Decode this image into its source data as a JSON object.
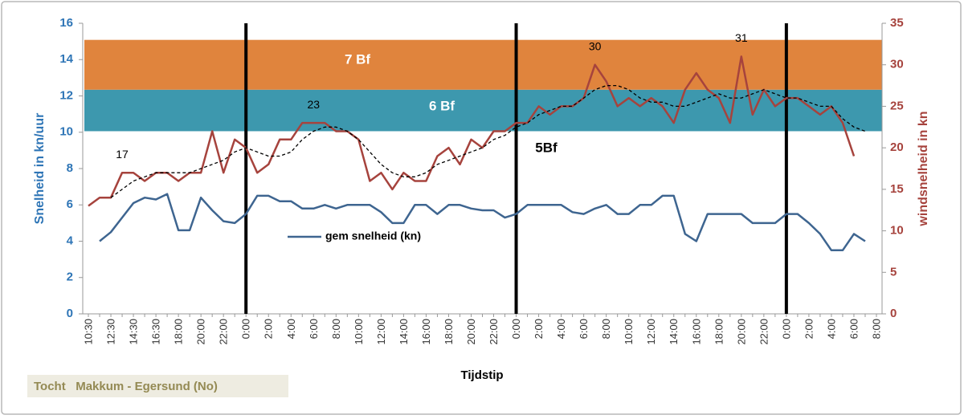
{
  "chart_data": {
    "type": "line",
    "xlabel": "Tijdstip",
    "ylabel": "Snelheid in kn/uur",
    "y2label": "windsnelheid in kn",
    "footnote": "Tocht   Makkum - Egersund (No)",
    "categories": [
      "10:30",
      null,
      "12:30",
      null,
      "14:30",
      null,
      "16:30",
      null,
      "18:00",
      null,
      "20:00",
      null,
      "22:00",
      null,
      "0:00",
      null,
      "2:00",
      null,
      "4:00",
      null,
      "6:00",
      null,
      "8:00",
      null,
      "10:00",
      null,
      "12:00",
      null,
      "14:00",
      null,
      "16:00",
      null,
      "18:00",
      null,
      "20:00",
      null,
      "22:00",
      null,
      "0:00",
      null,
      "2:00",
      null,
      "4:00",
      null,
      "6:00",
      null,
      "8:00",
      null,
      "10:00",
      null,
      "12:00",
      null,
      "14:00",
      null,
      "16:00",
      null,
      "18:00",
      null,
      "20:00",
      null,
      "22:00",
      null,
      "0:00",
      null,
      "2:00",
      null,
      "4:00",
      null,
      "6:00",
      null,
      "8:00"
    ],
    "ylim": [
      0,
      16
    ],
    "yticks": [
      0,
      2,
      4,
      6,
      8,
      10,
      12,
      14,
      16
    ],
    "y2lim": [
      0,
      35
    ],
    "y2ticks": [
      0,
      5,
      10,
      15,
      20,
      25,
      30,
      35
    ],
    "bands": [
      {
        "label": "5Bf",
        "from": 0,
        "to": 22,
        "color": "#ffffff",
        "label_color": "#000000"
      },
      {
        "label": "6 Bf",
        "from": 22,
        "to": 27,
        "color": "#3d98ae",
        "label_color": "#ffffff"
      },
      {
        "label": "7 Bf",
        "from": 27,
        "to": 33,
        "color": "#e0843d",
        "label_color": "#ffffff"
      }
    ],
    "series": [
      {
        "name": "gem snelheid (kn)",
        "color": "#3e6590",
        "axis": "y",
        "values": [
          null,
          4.0,
          4.5,
          5.3,
          6.1,
          6.4,
          6.3,
          6.6,
          4.6,
          4.6,
          6.4,
          5.7,
          5.1,
          5.0,
          5.5,
          6.5,
          6.5,
          6.2,
          6.2,
          5.8,
          5.8,
          6.0,
          5.8,
          6.0,
          6.0,
          6.0,
          5.6,
          5.0,
          5.0,
          6.0,
          6.0,
          5.5,
          6.0,
          6.0,
          5.8,
          5.7,
          5.7,
          5.3,
          5.5,
          6.0,
          6.0,
          6.0,
          6.0,
          5.6,
          5.5,
          5.8,
          6.0,
          5.5,
          5.5,
          6.0,
          6.0,
          6.5,
          6.5,
          4.4,
          4.0,
          5.5,
          5.5,
          5.5,
          5.5,
          5.0,
          5.0,
          5.0,
          5.5,
          5.5,
          5.0,
          4.4,
          3.5,
          3.5,
          4.4,
          4.0,
          null
        ]
      },
      {
        "color": "#a6433d",
        "axis": "y2",
        "values": [
          13,
          14,
          14,
          17,
          17,
          16,
          17,
          17,
          16,
          17,
          17,
          22,
          17,
          21,
          20,
          17,
          18,
          21,
          21,
          23,
          23,
          23,
          22,
          22,
          21,
          16,
          17,
          15,
          17,
          16,
          16,
          19,
          20,
          18,
          21,
          20,
          22,
          22,
          23,
          23,
          25,
          24,
          25,
          25,
          26,
          30,
          28,
          25,
          26,
          25,
          26,
          25,
          23,
          27,
          29,
          27,
          26,
          23,
          31,
          24,
          27,
          25,
          26,
          26,
          25,
          24,
          25,
          23,
          19,
          null,
          null
        ],
        "value_labels": [
          null,
          null,
          null,
          "17",
          null,
          null,
          null,
          null,
          null,
          null,
          null,
          null,
          null,
          null,
          null,
          null,
          null,
          null,
          null,
          null,
          "23",
          null,
          null,
          null,
          null,
          null,
          null,
          null,
          null,
          null,
          null,
          null,
          null,
          null,
          null,
          null,
          null,
          null,
          null,
          null,
          null,
          null,
          null,
          null,
          null,
          "30",
          null,
          null,
          null,
          null,
          null,
          null,
          null,
          null,
          null,
          null,
          null,
          null,
          "31",
          null,
          null,
          null,
          null,
          null,
          null,
          null,
          null,
          null,
          null,
          null,
          null
        ]
      },
      {
        "color": "#000000",
        "axis": "y2",
        "dash": true,
        "values": [
          null,
          null,
          14,
          15,
          16,
          16.5,
          17,
          17,
          17,
          17,
          17.5,
          18,
          18.5,
          19.5,
          20,
          19.5,
          19,
          19,
          19.5,
          21,
          22,
          22.5,
          22.5,
          22,
          21,
          19.5,
          18,
          17,
          16.5,
          16.5,
          17,
          18,
          18.5,
          19,
          19.5,
          20,
          21,
          21.5,
          22.5,
          23,
          24,
          24.5,
          25,
          25,
          26,
          27,
          27.5,
          27.5,
          27,
          26,
          25.5,
          25.5,
          25,
          25,
          25.5,
          26,
          26.5,
          26,
          26,
          26.5,
          27,
          26.5,
          26,
          26,
          25.5,
          25,
          25,
          23.5,
          22.5,
          22,
          null
        ]
      }
    ]
  }
}
